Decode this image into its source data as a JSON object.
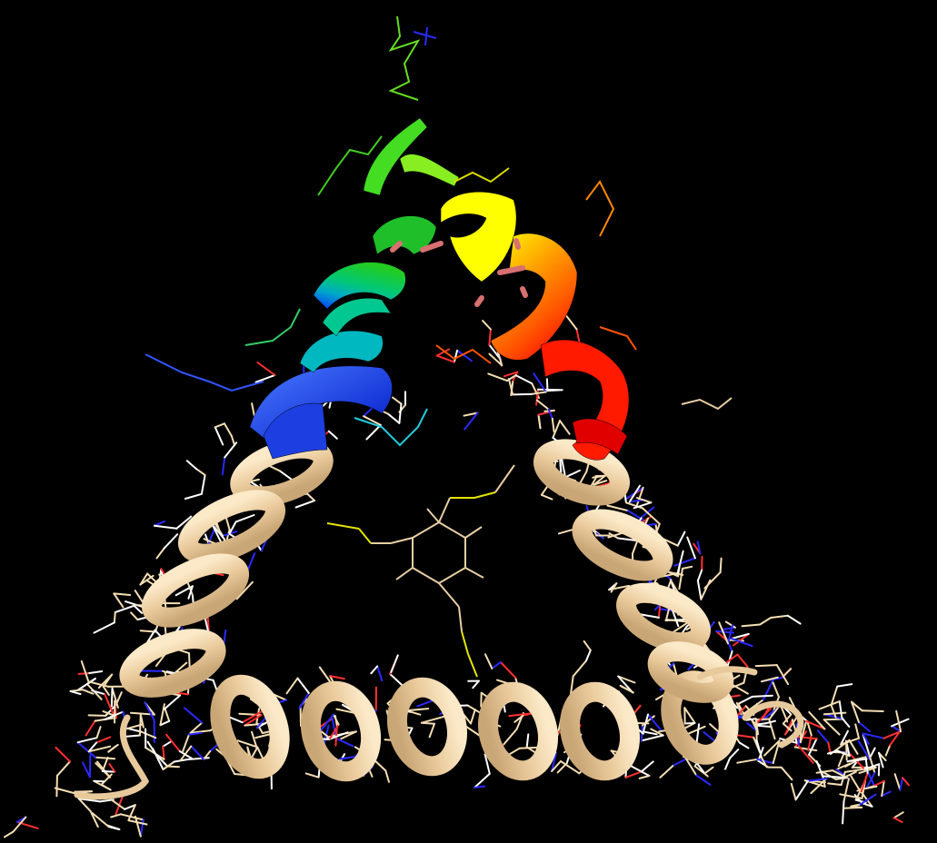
{
  "scene": {
    "background_color": "#000000",
    "structures": [
      {
        "name": "cyclic-peptide-helices",
        "representation": "cartoon",
        "color": "#f5deb3"
      },
      {
        "name": "highlighted-helix-segment",
        "representation": "cartoon",
        "coloring": "rainbow",
        "colors": [
          "#0033ff",
          "#00c8a0",
          "#22cc22",
          "#ffff00",
          "#ff8c00",
          "#ff1a00"
        ]
      },
      {
        "name": "side-chains",
        "representation": "lines",
        "element_colors": {
          "carbon": "#f5deb3",
          "nitrogen": "#2a2aff",
          "oxygen": "#ff3030",
          "hydrogen": "#ffffff",
          "sulfur": "#e5e500"
        }
      },
      {
        "name": "central-benzene-linker",
        "representation": "lines",
        "color": "#f5deb3"
      }
    ]
  }
}
